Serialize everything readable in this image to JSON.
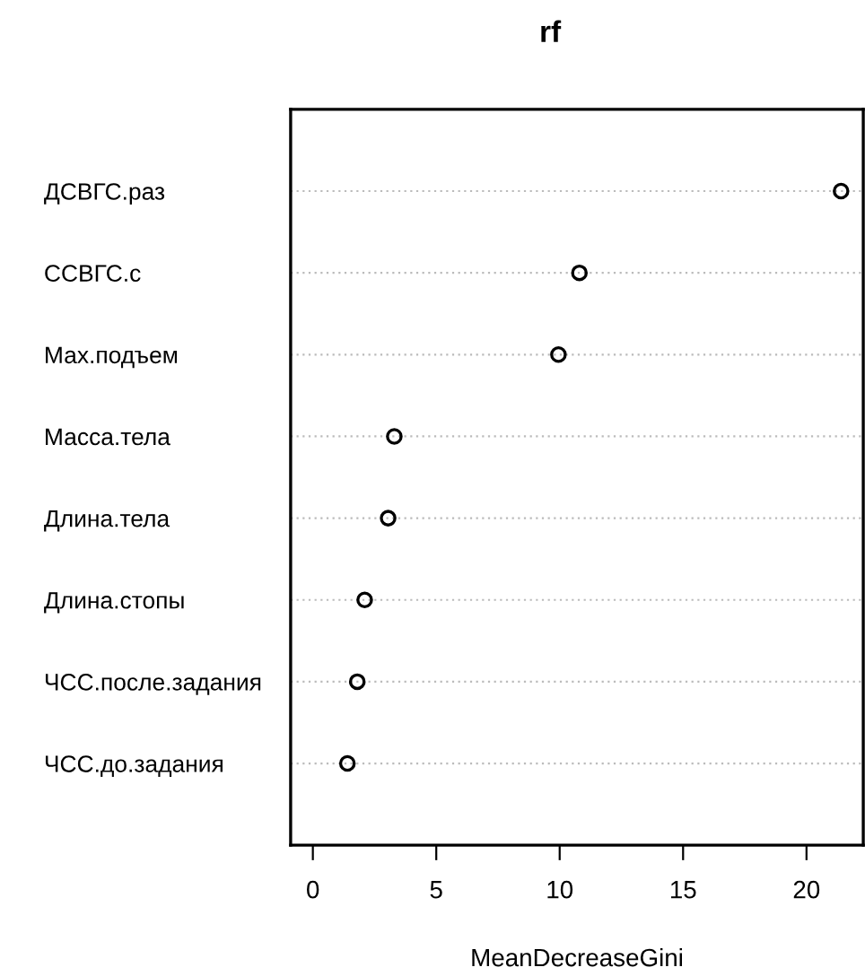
{
  "chart_data": {
    "type": "scatter",
    "title": "rf",
    "xlabel": "MeanDecreaseGini",
    "categories": [
      "ДСВГС.раз",
      "ССВГС.с",
      "Мах.подъем",
      "Масса.тела",
      "Длина.тела",
      "Длина.стопы",
      "ЧСС.после.задания",
      "ЧСС.до.задания"
    ],
    "values": [
      21.4,
      10.8,
      9.95,
      3.3,
      3.05,
      2.1,
      1.8,
      1.4
    ],
    "color": "#000000",
    "marker": "circle",
    "grid": "y",
    "orientation": "horizontal",
    "xlim": [
      -0.9,
      22.3
    ],
    "xticks": [
      0,
      5,
      10,
      15,
      20
    ]
  }
}
